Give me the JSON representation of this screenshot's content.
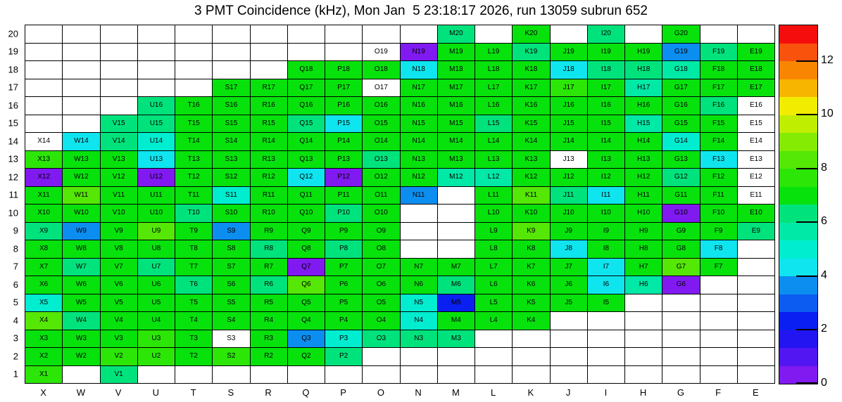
{
  "chart_data": {
    "type": "heatmap",
    "title": "3 PMT Coincidence (kHz), Mon Jan  5 23:18:17 2026, run 13059 subrun 652",
    "value_unit": "kHz",
    "x_categories": [
      "X",
      "W",
      "V",
      "U",
      "T",
      "S",
      "R",
      "Q",
      "P",
      "O",
      "N",
      "M",
      "L",
      "K",
      "J",
      "I",
      "H",
      "G",
      "F",
      "E"
    ],
    "y_categories": [
      "1",
      "2",
      "3",
      "4",
      "5",
      "6",
      "7",
      "8",
      "9",
      "10",
      "11",
      "12",
      "13",
      "14",
      "15",
      "16",
      "17",
      "18",
      "19",
      "20"
    ],
    "grid": true,
    "legend_position": "right",
    "zlim": [
      0,
      13.33
    ],
    "colorbar_ticks": [
      0,
      2,
      4,
      6,
      8,
      10,
      12
    ],
    "palette": [
      "#801AF1",
      "#5116F2",
      "#2315F2",
      "#0A1FF2",
      "#0C5CF2",
      "#0C8EF1",
      "#0FE5EE",
      "#00EDD0",
      "#00E9A6",
      "#00E37C",
      "#07E20C",
      "#2CE607",
      "#55E705",
      "#86EB03",
      "#C0EE01",
      "#F2EC00",
      "#F8B500",
      "#F88600",
      "#F8520C",
      "#F50D0D"
    ],
    "cells": [
      [
        "M20",
        6.3
      ],
      [
        "K20",
        7.0
      ],
      [
        "I20",
        6.3
      ],
      [
        "G20",
        7.0
      ],
      [
        "O19",
        null
      ],
      [
        "N19",
        0.3
      ],
      [
        "M19",
        7.0
      ],
      [
        "L19",
        7.0
      ],
      [
        "K19",
        6.3
      ],
      [
        "J19",
        7.0
      ],
      [
        "I19",
        7.0
      ],
      [
        "H19",
        7.0
      ],
      [
        "G19",
        3.6
      ],
      [
        "F19",
        6.3
      ],
      [
        "E19",
        7.0
      ],
      [
        "Q18",
        7.0
      ],
      [
        "P18",
        7.0
      ],
      [
        "O18",
        7.0
      ],
      [
        "N18",
        4.3
      ],
      [
        "M18",
        7.0
      ],
      [
        "L18",
        7.0
      ],
      [
        "K18",
        7.0
      ],
      [
        "J18",
        4.3
      ],
      [
        "I18",
        6.3
      ],
      [
        "H18",
        6.3
      ],
      [
        "G18",
        5.7
      ],
      [
        "F18",
        7.0
      ],
      [
        "E18",
        7.0
      ],
      [
        "S17",
        7.0
      ],
      [
        "R17",
        7.0
      ],
      [
        "Q17",
        7.0
      ],
      [
        "P17",
        7.0
      ],
      [
        "O17",
        null
      ],
      [
        "N17",
        7.0
      ],
      [
        "M17",
        7.0
      ],
      [
        "L17",
        7.0
      ],
      [
        "K17",
        7.0
      ],
      [
        "J17",
        7.6
      ],
      [
        "I17",
        7.0
      ],
      [
        "H17",
        5.7
      ],
      [
        "G17",
        7.0
      ],
      [
        "F17",
        7.0
      ],
      [
        "E17",
        7.0
      ],
      [
        "U16",
        6.3
      ],
      [
        "T16",
        7.0
      ],
      [
        "S16",
        7.0
      ],
      [
        "R16",
        7.0
      ],
      [
        "Q16",
        7.0
      ],
      [
        "P16",
        7.0
      ],
      [
        "O16",
        7.0
      ],
      [
        "N16",
        7.0
      ],
      [
        "M16",
        7.0
      ],
      [
        "L16",
        7.0
      ],
      [
        "K16",
        7.0
      ],
      [
        "J16",
        7.0
      ],
      [
        "I16",
        7.0
      ],
      [
        "H16",
        7.0
      ],
      [
        "G16",
        7.0
      ],
      [
        "F16",
        6.3
      ],
      [
        "E16",
        null
      ],
      [
        "V15",
        6.3
      ],
      [
        "U15",
        6.3
      ],
      [
        "T15",
        7.0
      ],
      [
        "S15",
        7.0
      ],
      [
        "R15",
        7.0
      ],
      [
        "Q15",
        6.3
      ],
      [
        "P15",
        4.3
      ],
      [
        "O15",
        7.0
      ],
      [
        "N15",
        7.0
      ],
      [
        "M15",
        7.0
      ],
      [
        "L15",
        6.3
      ],
      [
        "K15",
        7.0
      ],
      [
        "J15",
        7.0
      ],
      [
        "I15",
        7.0
      ],
      [
        "H15",
        5.7
      ],
      [
        "G15",
        7.0
      ],
      [
        "F15",
        7.0
      ],
      [
        "E15",
        null
      ],
      [
        "X14",
        null
      ],
      [
        "W14",
        4.3
      ],
      [
        "V14",
        6.3
      ],
      [
        "U14",
        4.9
      ],
      [
        "T14",
        7.0
      ],
      [
        "S14",
        7.0
      ],
      [
        "R14",
        7.0
      ],
      [
        "Q14",
        7.0
      ],
      [
        "P14",
        7.0
      ],
      [
        "O14",
        7.0
      ],
      [
        "N14",
        7.0
      ],
      [
        "M14",
        7.0
      ],
      [
        "L14",
        7.0
      ],
      [
        "K14",
        7.0
      ],
      [
        "J14",
        7.0
      ],
      [
        "I14",
        7.0
      ],
      [
        "H14",
        7.0
      ],
      [
        "G14",
        4.9
      ],
      [
        "F14",
        7.0
      ],
      [
        "E14",
        null
      ],
      [
        "X13",
        7.6
      ],
      [
        "W13",
        7.0
      ],
      [
        "V13",
        7.0
      ],
      [
        "U13",
        4.3
      ],
      [
        "T13",
        7.0
      ],
      [
        "S13",
        7.0
      ],
      [
        "R13",
        7.0
      ],
      [
        "Q13",
        7.0
      ],
      [
        "P13",
        7.0
      ],
      [
        "O13",
        6.3
      ],
      [
        "N13",
        7.0
      ],
      [
        "M13",
        7.0
      ],
      [
        "L13",
        7.0
      ],
      [
        "K13",
        7.0
      ],
      [
        "J13",
        null
      ],
      [
        "I13",
        7.0
      ],
      [
        "H13",
        7.0
      ],
      [
        "G13",
        7.0
      ],
      [
        "F13",
        4.3
      ],
      [
        "E13",
        null
      ],
      [
        "X12",
        0.3
      ],
      [
        "W12",
        7.0
      ],
      [
        "V12",
        7.0
      ],
      [
        "U12",
        0.3
      ],
      [
        "T12",
        7.0
      ],
      [
        "S12",
        7.0
      ],
      [
        "R12",
        7.0
      ],
      [
        "Q12",
        4.3
      ],
      [
        "P12",
        0.3
      ],
      [
        "O12",
        7.0
      ],
      [
        "N12",
        7.0
      ],
      [
        "M12",
        5.5
      ],
      [
        "L12",
        5.5
      ],
      [
        "K12",
        7.0
      ],
      [
        "J12",
        7.0
      ],
      [
        "I12",
        7.0
      ],
      [
        "H12",
        7.0
      ],
      [
        "G12",
        6.3
      ],
      [
        "F12",
        7.0
      ],
      [
        "E12",
        null
      ],
      [
        "X11",
        7.0
      ],
      [
        "W11",
        8.3
      ],
      [
        "V11",
        7.0
      ],
      [
        "U11",
        7.0
      ],
      [
        "T11",
        7.0
      ],
      [
        "S11",
        4.9
      ],
      [
        "R11",
        7.0
      ],
      [
        "Q11",
        7.0
      ],
      [
        "P11",
        7.0
      ],
      [
        "O11",
        7.0
      ],
      [
        "N11",
        3.6
      ],
      [
        "L11",
        7.0
      ],
      [
        "K11",
        8.3
      ],
      [
        "J11",
        6.3
      ],
      [
        "I11",
        4.3
      ],
      [
        "H11",
        7.0
      ],
      [
        "G11",
        7.0
      ],
      [
        "F11",
        7.0
      ],
      [
        "E11",
        null
      ],
      [
        "X10",
        7.0
      ],
      [
        "W10",
        7.0
      ],
      [
        "V10",
        7.0
      ],
      [
        "U10",
        7.0
      ],
      [
        "T10",
        6.3
      ],
      [
        "S10",
        7.0
      ],
      [
        "R10",
        7.0
      ],
      [
        "Q10",
        7.0
      ],
      [
        "P10",
        6.3
      ],
      [
        "O10",
        7.0
      ],
      [
        "L10",
        7.0
      ],
      [
        "K10",
        7.0
      ],
      [
        "J10",
        7.0
      ],
      [
        "I10",
        7.0
      ],
      [
        "H10",
        7.0
      ],
      [
        "G10",
        0.3
      ],
      [
        "F10",
        7.0
      ],
      [
        "E10",
        7.0
      ],
      [
        "X9",
        6.3
      ],
      [
        "W9",
        3.6
      ],
      [
        "V9",
        7.0
      ],
      [
        "U9",
        8.3
      ],
      [
        "T9",
        7.0
      ],
      [
        "S9",
        3.6
      ],
      [
        "R9",
        7.0
      ],
      [
        "Q9",
        7.0
      ],
      [
        "P9",
        7.0
      ],
      [
        "O9",
        7.0
      ],
      [
        "L9",
        7.0
      ],
      [
        "K9",
        8.3
      ],
      [
        "J9",
        7.0
      ],
      [
        "I9",
        7.0
      ],
      [
        "H9",
        7.0
      ],
      [
        "G9",
        7.0
      ],
      [
        "F9",
        7.0
      ],
      [
        "E9",
        6.3
      ],
      [
        "X8",
        7.0
      ],
      [
        "W8",
        7.0
      ],
      [
        "V8",
        7.0
      ],
      [
        "U8",
        7.0
      ],
      [
        "T8",
        7.0
      ],
      [
        "S8",
        7.0
      ],
      [
        "R8",
        6.3
      ],
      [
        "Q8",
        7.0
      ],
      [
        "P8",
        6.3
      ],
      [
        "O8",
        7.0
      ],
      [
        "L8",
        7.0
      ],
      [
        "K8",
        7.0
      ],
      [
        "J8",
        4.3
      ],
      [
        "I8",
        7.0
      ],
      [
        "H8",
        7.0
      ],
      [
        "G8",
        7.0
      ],
      [
        "F8",
        4.3
      ],
      [
        "X7",
        7.0
      ],
      [
        "W7",
        6.3
      ],
      [
        "V7",
        7.0
      ],
      [
        "U7",
        6.3
      ],
      [
        "T7",
        7.0
      ],
      [
        "S7",
        7.0
      ],
      [
        "R7",
        7.0
      ],
      [
        "Q7",
        0.3
      ],
      [
        "P7",
        7.0
      ],
      [
        "O7",
        7.0
      ],
      [
        "N7",
        7.0
      ],
      [
        "M7",
        7.0
      ],
      [
        "L7",
        7.0
      ],
      [
        "K7",
        7.0
      ],
      [
        "J7",
        7.0
      ],
      [
        "I7",
        4.3
      ],
      [
        "H7",
        7.0
      ],
      [
        "G7",
        8.3
      ],
      [
        "F7",
        7.0
      ],
      [
        "X6",
        7.0
      ],
      [
        "W6",
        7.0
      ],
      [
        "V6",
        7.0
      ],
      [
        "U6",
        7.0
      ],
      [
        "T6",
        6.3
      ],
      [
        "S6",
        7.0
      ],
      [
        "R6",
        6.3
      ],
      [
        "Q6",
        8.3
      ],
      [
        "P6",
        7.0
      ],
      [
        "O6",
        7.0
      ],
      [
        "N6",
        7.0
      ],
      [
        "M6",
        6.3
      ],
      [
        "L6",
        7.0
      ],
      [
        "K6",
        7.0
      ],
      [
        "J6",
        7.0
      ],
      [
        "I6",
        4.3
      ],
      [
        "H6",
        5.7
      ],
      [
        "G6",
        0.3
      ],
      [
        "X5",
        4.9
      ],
      [
        "W5",
        7.0
      ],
      [
        "V5",
        7.0
      ],
      [
        "U5",
        7.0
      ],
      [
        "T5",
        7.0
      ],
      [
        "S5",
        7.0
      ],
      [
        "R5",
        7.0
      ],
      [
        "Q5",
        7.0
      ],
      [
        "P5",
        7.0
      ],
      [
        "O5",
        7.0
      ],
      [
        "N5",
        4.9
      ],
      [
        "M5",
        2.3
      ],
      [
        "L5",
        7.0
      ],
      [
        "K5",
        7.0
      ],
      [
        "J5",
        7.0
      ],
      [
        "I5",
        7.0
      ],
      [
        "X4",
        8.3
      ],
      [
        "W4",
        6.3
      ],
      [
        "V4",
        7.0
      ],
      [
        "U4",
        7.0
      ],
      [
        "T4",
        7.0
      ],
      [
        "S4",
        7.0
      ],
      [
        "R4",
        7.0
      ],
      [
        "Q4",
        7.0
      ],
      [
        "P4",
        7.0
      ],
      [
        "O4",
        7.0
      ],
      [
        "N4",
        4.9
      ],
      [
        "M4",
        7.0
      ],
      [
        "L4",
        7.0
      ],
      [
        "K4",
        7.0
      ],
      [
        "X3",
        7.0
      ],
      [
        "W3",
        7.0
      ],
      [
        "V3",
        7.0
      ],
      [
        "U3",
        7.6
      ],
      [
        "T3",
        7.0
      ],
      [
        "S3",
        null
      ],
      [
        "R3",
        7.0
      ],
      [
        "Q3",
        3.6
      ],
      [
        "P3",
        4.9
      ],
      [
        "O3",
        6.3
      ],
      [
        "N3",
        6.3
      ],
      [
        "M3",
        6.3
      ],
      [
        "X2",
        7.0
      ],
      [
        "W2",
        7.0
      ],
      [
        "V2",
        7.6
      ],
      [
        "U2",
        7.6
      ],
      [
        "T2",
        7.0
      ],
      [
        "S2",
        7.6
      ],
      [
        "R2",
        7.0
      ],
      [
        "Q2",
        7.0
      ],
      [
        "P2",
        6.3
      ],
      [
        "X1",
        7.6
      ],
      [
        "V1",
        6.3
      ]
    ]
  }
}
